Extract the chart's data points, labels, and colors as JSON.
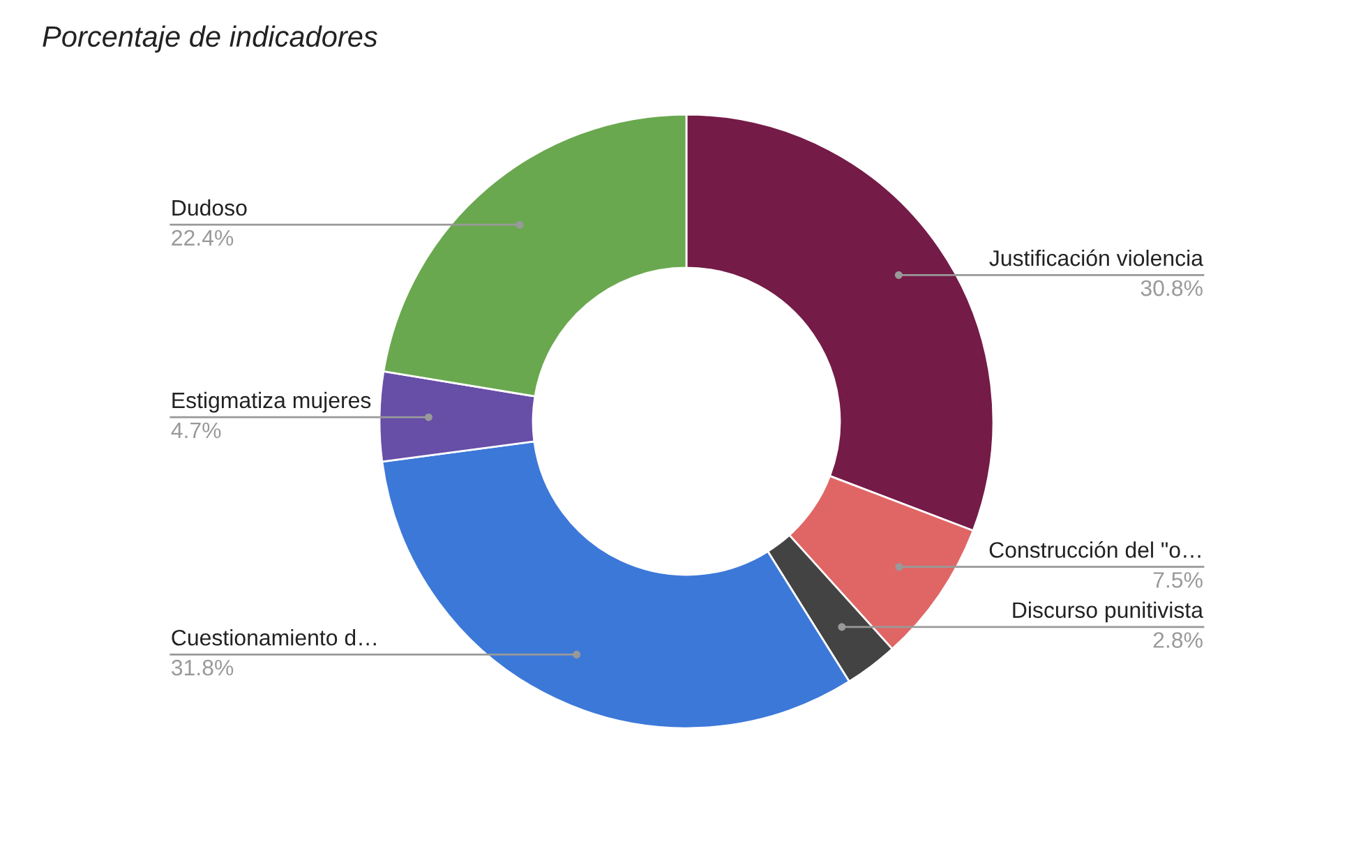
{
  "chart_data": {
    "type": "donut",
    "title": "Porcentaje de indicadores",
    "categories": [
      "Justificación violencia",
      "Construcción del \"o…",
      "Discurso punitivista",
      "Cuestionamiento d…",
      "Estigmatiza mujeres",
      "Dudoso"
    ],
    "values": [
      30.8,
      7.5,
      2.8,
      31.8,
      4.7,
      22.4
    ],
    "colors": [
      "#741b47",
      "#e06666",
      "#434343",
      "#3c78d8",
      "#674ea7",
      "#6aa84f"
    ],
    "value_labels": [
      "30.8%",
      "7.5%",
      "2.8%",
      "31.8%",
      "4.7%",
      "22.4%"
    ],
    "legend": false
  }
}
